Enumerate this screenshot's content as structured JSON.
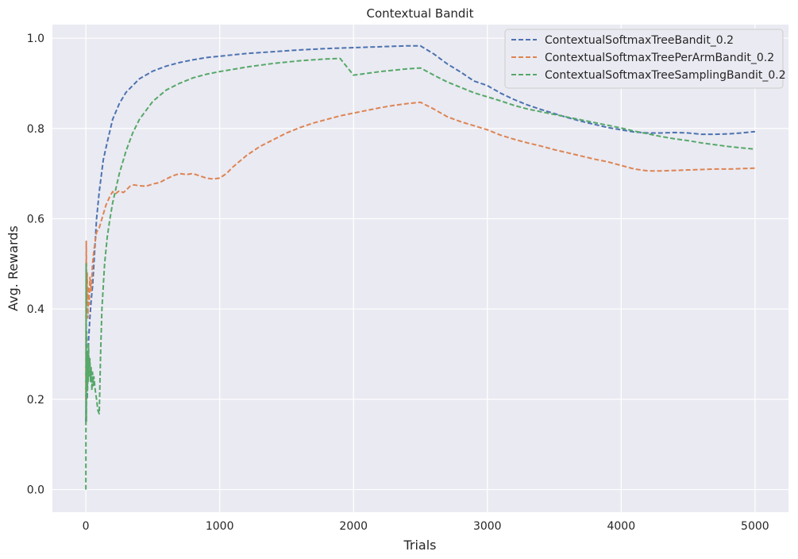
{
  "colors": {
    "plot_bg": "#EAEAF2",
    "grid": "#FFFFFF",
    "series": [
      "#4C72B0",
      "#DD8452",
      "#55A868"
    ]
  },
  "chart_data": {
    "type": "line",
    "title": "Contextual Bandit",
    "xlabel": "Trials",
    "ylabel": "Avg. Rewards",
    "xlim": [
      -250,
      5250
    ],
    "ylim": [
      -0.05,
      1.03
    ],
    "xticks": [
      0,
      1000,
      2000,
      3000,
      4000,
      5000
    ],
    "yticks": [
      0.0,
      0.2,
      0.4,
      0.6,
      0.8,
      1.0
    ],
    "xtick_labels": [
      "0",
      "1000",
      "2000",
      "3000",
      "4000",
      "5000"
    ],
    "ytick_labels": [
      "0.0",
      "0.2",
      "0.4",
      "0.6",
      "0.8",
      "1.0"
    ],
    "grid": true,
    "line_style": "dashed",
    "legend_position": "top-right",
    "series": [
      {
        "name": "ContextualSoftmaxTreeBandit_0.2",
        "x": [
          0,
          5,
          10,
          20,
          30,
          40,
          50,
          60,
          80,
          100,
          130,
          160,
          200,
          250,
          300,
          400,
          500,
          600,
          700,
          800,
          900,
          1000,
          1200,
          1400,
          1600,
          1800,
          2000,
          2200,
          2400,
          2500,
          2600,
          2700,
          2800,
          2900,
          3000,
          3100,
          3200,
          3300,
          3400,
          3500,
          3600,
          3700,
          3800,
          3900,
          4000,
          4100,
          4200,
          4300,
          4400,
          4500,
          4600,
          4700,
          4800,
          4900,
          5000
        ],
        "y": [
          0.15,
          0.3,
          0.2,
          0.33,
          0.38,
          0.42,
          0.45,
          0.5,
          0.6,
          0.66,
          0.73,
          0.77,
          0.82,
          0.855,
          0.88,
          0.91,
          0.927,
          0.938,
          0.946,
          0.952,
          0.957,
          0.96,
          0.966,
          0.97,
          0.974,
          0.977,
          0.979,
          0.981,
          0.983,
          0.983,
          0.965,
          0.943,
          0.925,
          0.905,
          0.895,
          0.878,
          0.864,
          0.852,
          0.842,
          0.833,
          0.824,
          0.816,
          0.809,
          0.802,
          0.797,
          0.792,
          0.79,
          0.79,
          0.791,
          0.79,
          0.787,
          0.787,
          0.788,
          0.79,
          0.793
        ]
      },
      {
        "name": "ContextualSoftmaxTreePerArmBandit_0.2",
        "x": [
          0,
          3,
          6,
          10,
          15,
          20,
          25,
          30,
          40,
          50,
          60,
          80,
          100,
          120,
          150,
          180,
          200,
          220,
          250,
          280,
          300,
          330,
          360,
          400,
          450,
          500,
          550,
          600,
          650,
          700,
          750,
          800,
          850,
          900,
          950,
          1000,
          1050,
          1100,
          1200,
          1300,
          1400,
          1500,
          1600,
          1700,
          1800,
          1900,
          2000,
          2100,
          2200,
          2300,
          2400,
          2500,
          2600,
          2700,
          2800,
          2900,
          3000,
          3100,
          3200,
          3300,
          3400,
          3500,
          3600,
          3700,
          3800,
          3900,
          4000,
          4100,
          4200,
          4300,
          4400,
          4500,
          4600,
          4700,
          4800,
          4900,
          5000
        ],
        "y": [
          0.2,
          0.55,
          0.42,
          0.48,
          0.38,
          0.45,
          0.41,
          0.47,
          0.44,
          0.5,
          0.53,
          0.57,
          0.58,
          0.6,
          0.63,
          0.65,
          0.66,
          0.655,
          0.662,
          0.658,
          0.663,
          0.672,
          0.675,
          0.673,
          0.672,
          0.677,
          0.68,
          0.688,
          0.695,
          0.7,
          0.698,
          0.7,
          0.695,
          0.69,
          0.688,
          0.69,
          0.7,
          0.715,
          0.74,
          0.76,
          0.775,
          0.79,
          0.802,
          0.812,
          0.82,
          0.828,
          0.834,
          0.84,
          0.846,
          0.851,
          0.855,
          0.858,
          0.843,
          0.826,
          0.815,
          0.806,
          0.797,
          0.785,
          0.776,
          0.768,
          0.761,
          0.753,
          0.746,
          0.739,
          0.732,
          0.726,
          0.718,
          0.71,
          0.706,
          0.706,
          0.707,
          0.708,
          0.709,
          0.71,
          0.71,
          0.711,
          0.712
        ]
      },
      {
        "name": "ContextualSoftmaxTreeSamplingBandit_0.2",
        "x": [
          0,
          2,
          4,
          6,
          8,
          10,
          12,
          15,
          18,
          20,
          25,
          30,
          35,
          40,
          45,
          50,
          55,
          60,
          70,
          80,
          90,
          100,
          110,
          120,
          140,
          160,
          180,
          200,
          250,
          300,
          350,
          400,
          500,
          600,
          700,
          800,
          900,
          1000,
          1200,
          1400,
          1600,
          1800,
          1900,
          2000,
          2100,
          2200,
          2300,
          2400,
          2500,
          2600,
          2700,
          2800,
          2900,
          3000,
          3100,
          3200,
          3300,
          3400,
          3500,
          3600,
          3700,
          3800,
          3900,
          4000,
          4100,
          4200,
          4300,
          4400,
          4500,
          4600,
          4700,
          4800,
          4900,
          5000
        ],
        "y": [
          0.0,
          0.5,
          0.15,
          0.35,
          0.2,
          0.3,
          0.22,
          0.28,
          0.24,
          0.32,
          0.25,
          0.29,
          0.24,
          0.27,
          0.22,
          0.26,
          0.23,
          0.25,
          0.22,
          0.2,
          0.175,
          0.168,
          0.3,
          0.4,
          0.5,
          0.56,
          0.6,
          0.635,
          0.7,
          0.75,
          0.79,
          0.82,
          0.86,
          0.885,
          0.9,
          0.912,
          0.92,
          0.926,
          0.936,
          0.944,
          0.95,
          0.954,
          0.955,
          0.918,
          0.922,
          0.926,
          0.929,
          0.932,
          0.934,
          0.918,
          0.903,
          0.891,
          0.879,
          0.87,
          0.861,
          0.851,
          0.843,
          0.837,
          0.831,
          0.825,
          0.819,
          0.813,
          0.807,
          0.801,
          0.794,
          0.788,
          0.782,
          0.777,
          0.773,
          0.768,
          0.764,
          0.76,
          0.757,
          0.754
        ]
      }
    ]
  }
}
